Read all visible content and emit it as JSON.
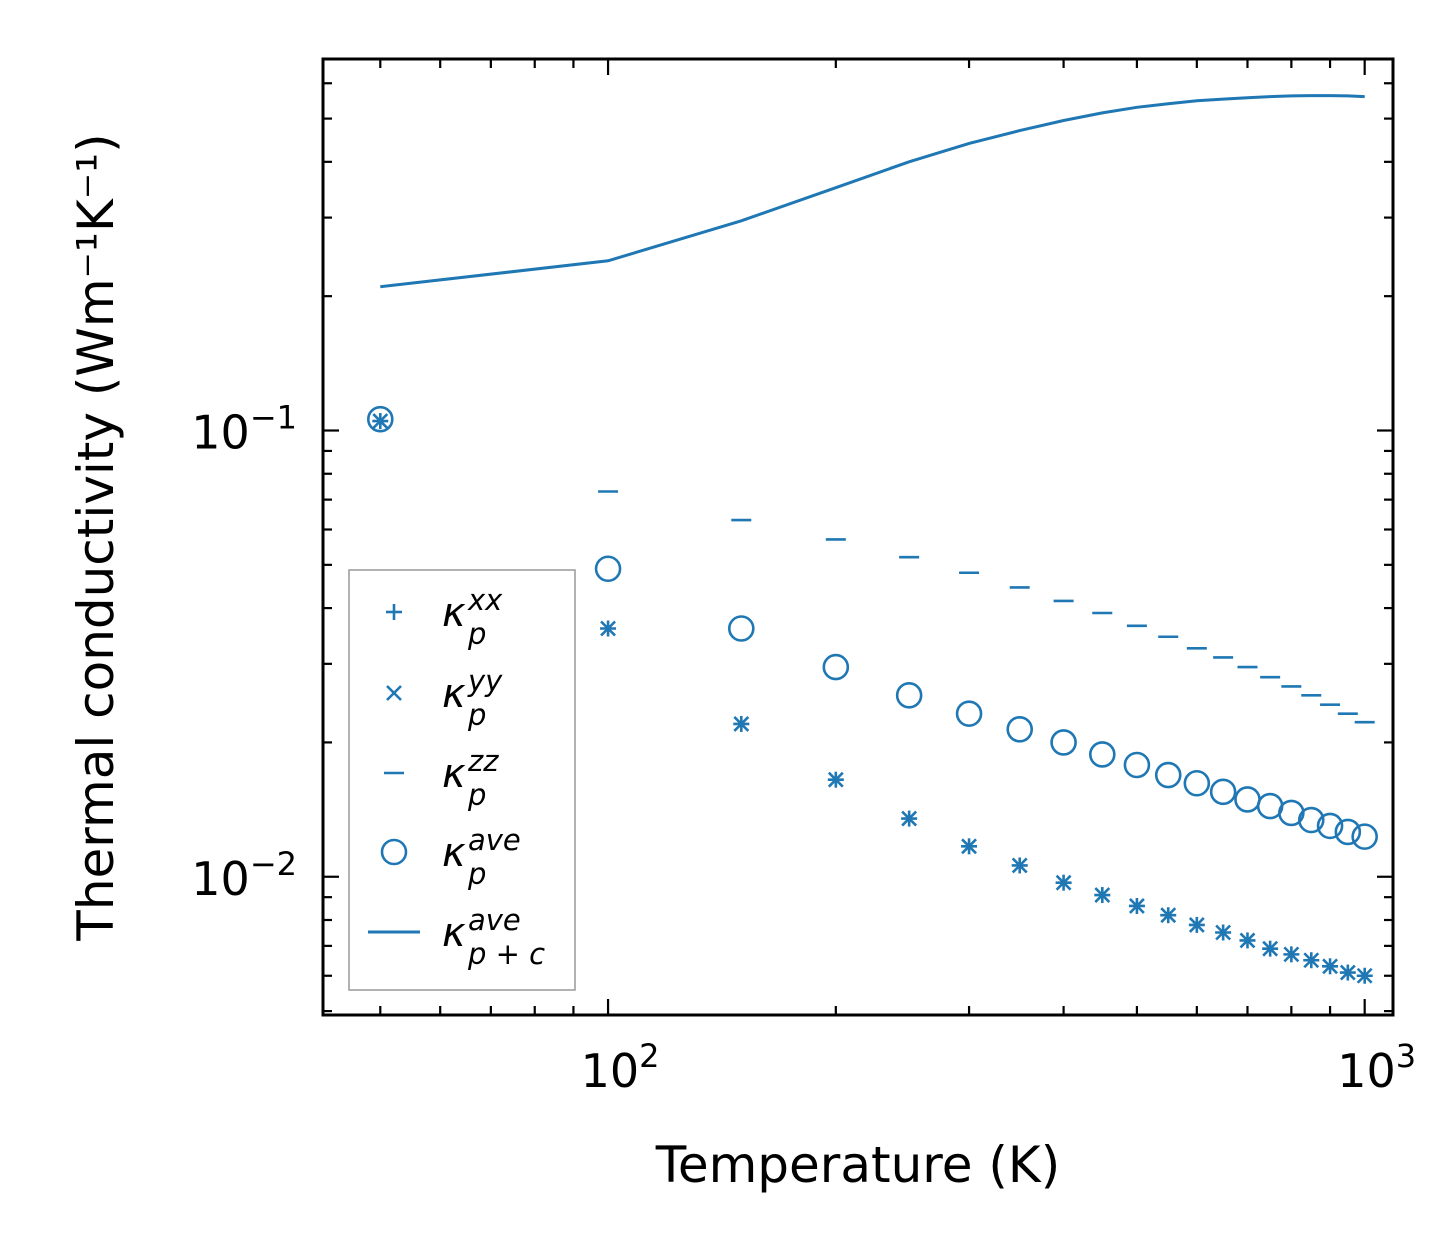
{
  "chart_data": {
    "type": "scatter",
    "title": "",
    "xlabel": "Temperature (K)",
    "ylabel": "Thermal conductivity (Wm⁻¹K⁻¹)",
    "xscale": "log",
    "yscale": "log",
    "xlim": [
      42,
      1090
    ],
    "ylim": [
      0.0049,
      0.68
    ],
    "color": "#1f77b4",
    "x_ticks": [
      {
        "value": 100,
        "base": "10",
        "exp": "2"
      },
      {
        "value": 1000,
        "base": "10",
        "exp": "3"
      }
    ],
    "y_ticks": [
      {
        "value": 0.01,
        "base": "10",
        "exp": "−2"
      },
      {
        "value": 0.1,
        "base": "10",
        "exp": "−1"
      }
    ],
    "legend_position": "lower-left",
    "x": [
      50,
      100,
      150,
      200,
      250,
      300,
      350,
      400,
      450,
      500,
      550,
      600,
      650,
      700,
      750,
      800,
      850,
      900,
      950,
      1000
    ],
    "series": [
      {
        "name": "kappa_p_xx",
        "marker": "plus",
        "label_main": "κ",
        "label_sub": "p",
        "label_sup": "xx",
        "values": [
          0.105,
          0.036,
          0.022,
          0.0165,
          0.0135,
          0.0117,
          0.0106,
          0.0097,
          0.0091,
          0.0086,
          0.0082,
          0.0078,
          0.0075,
          0.0072,
          0.0069,
          0.0067,
          0.0065,
          0.0063,
          0.0061,
          0.006
        ]
      },
      {
        "name": "kappa_p_yy",
        "marker": "x",
        "label_main": "κ",
        "label_sub": "p",
        "label_sup": "yy",
        "values": [
          0.105,
          0.036,
          0.022,
          0.0165,
          0.0135,
          0.0117,
          0.0106,
          0.0097,
          0.0091,
          0.0086,
          0.0082,
          0.0078,
          0.0075,
          0.0072,
          0.0069,
          0.0067,
          0.0065,
          0.0063,
          0.0061,
          0.006
        ]
      },
      {
        "name": "kappa_p_zz",
        "marker": "hline",
        "label_main": "κ",
        "label_sub": "p",
        "label_sup": "zz",
        "values": [
          null,
          0.073,
          0.063,
          0.057,
          0.052,
          0.048,
          0.0445,
          0.0415,
          0.039,
          0.0365,
          0.0345,
          0.0325,
          0.031,
          0.0295,
          0.028,
          0.0267,
          0.0255,
          0.0243,
          0.0232,
          0.0222
        ]
      },
      {
        "name": "kappa_p_ave",
        "marker": "circle",
        "label_main": "κ",
        "label_sub": "p",
        "label_sup": "ave",
        "values": [
          0.106,
          0.049,
          0.036,
          0.0295,
          0.0255,
          0.0232,
          0.0214,
          0.02,
          0.0188,
          0.0178,
          0.0169,
          0.0162,
          0.0155,
          0.0149,
          0.0144,
          0.0139,
          0.0134,
          0.013,
          0.0126,
          0.0123
        ]
      },
      {
        "name": "kappa_pc_ave",
        "marker": "line",
        "label_main": "κ",
        "label_sub": "p + c",
        "label_sup": "ave",
        "values": [
          0.21,
          0.24,
          0.295,
          0.35,
          0.4,
          0.44,
          0.47,
          0.495,
          0.515,
          0.53,
          0.54,
          0.548,
          0.553,
          0.557,
          0.56,
          0.562,
          0.563,
          0.563,
          0.562,
          0.56
        ]
      }
    ]
  }
}
